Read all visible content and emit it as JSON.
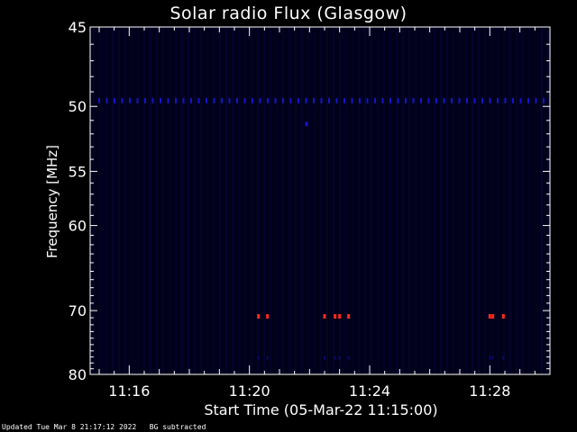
{
  "chart_data": {
    "type": "heatmap",
    "title": "Solar radio Flux (Glasgow)",
    "xlabel": "Start Time (05-Mar-22 11:15:00)",
    "ylabel": "Frequency [MHz]",
    "x_ticks": [
      "11:16",
      "11:20",
      "11:24",
      "11:28"
    ],
    "x_tick_minutes": [
      1,
      5,
      9,
      13
    ],
    "xlim_minutes": [
      -0.3,
      15.0
    ],
    "y_ticks": [
      45,
      50,
      55,
      60,
      70,
      80
    ],
    "ylim": [
      45,
      80
    ],
    "y_scale": "reciprocal",
    "colors": {
      "background": "#000000",
      "plot_bg": "#01011a",
      "axis": "#ffffff",
      "band": "#1515c8",
      "burst": "#ff2a1a"
    },
    "features": [
      {
        "name": "persistent emission",
        "freq_mhz": 49.6,
        "minute_start": 0.0,
        "minute_end": 14.8,
        "intensity": "low"
      },
      {
        "name": "isolated spot",
        "freq_mhz": 51.3,
        "minute": 6.9,
        "intensity": "low"
      }
    ],
    "bursts": [
      {
        "minute": 5.3,
        "freq_mhz": 70.8
      },
      {
        "minute": 5.6,
        "freq_mhz": 70.8
      },
      {
        "minute": 7.5,
        "freq_mhz": 70.8
      },
      {
        "minute": 7.85,
        "freq_mhz": 70.8
      },
      {
        "minute": 8.0,
        "freq_mhz": 70.8
      },
      {
        "minute": 8.3,
        "freq_mhz": 70.8
      },
      {
        "minute": 13.0,
        "freq_mhz": 70.8
      },
      {
        "minute": 13.1,
        "freq_mhz": 70.8
      },
      {
        "minute": 13.45,
        "freq_mhz": 70.8
      }
    ]
  },
  "footer": {
    "updated": "Updated Tue Mar  8 21:17:12 2022",
    "note": "BG subtracted"
  }
}
